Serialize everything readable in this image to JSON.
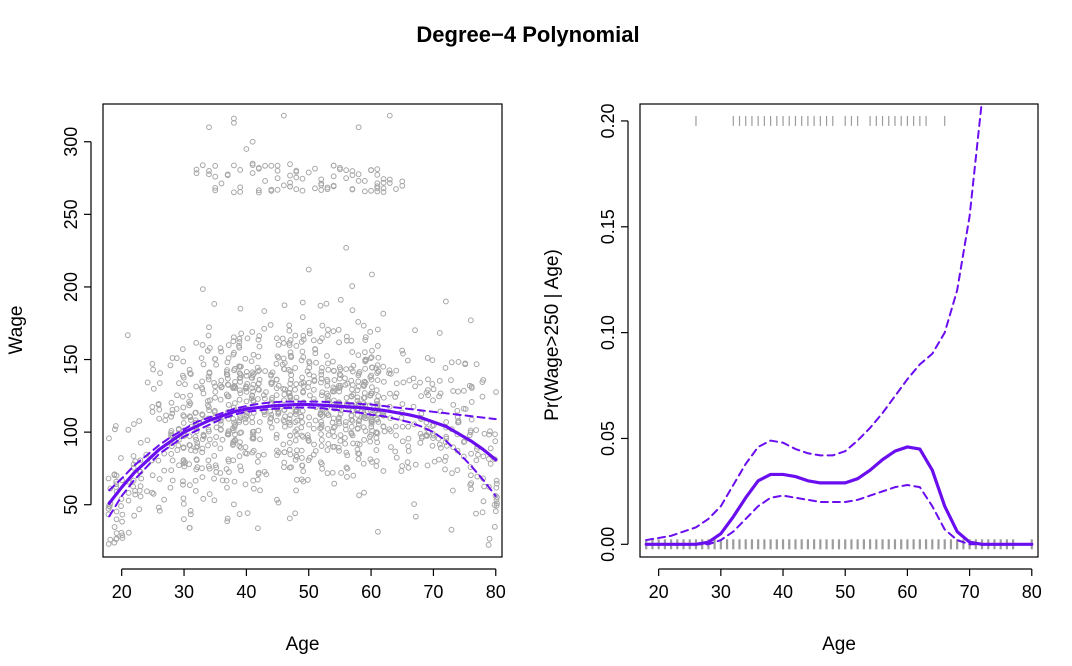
{
  "title": "Degree−4 Polynomial",
  "colors": {
    "fit": "#6a0ef0",
    "points": "#a6a6a6",
    "rug": "#9c9c9c",
    "axis": "#000000"
  },
  "chart_data": [
    {
      "type": "scatter",
      "panel": "left",
      "xlabel": "Age",
      "ylabel": "Wage",
      "xlim": [
        17,
        81
      ],
      "ylim": [
        14,
        326
      ],
      "xticks": [
        20,
        30,
        40,
        50,
        60,
        70,
        80
      ],
      "yticks": [
        50,
        100,
        150,
        200,
        250,
        300
      ],
      "series": [
        {
          "role": "fit",
          "style": "solid",
          "x": [
            18,
            20,
            22,
            24,
            26,
            28,
            30,
            32,
            34,
            36,
            38,
            40,
            42,
            44,
            46,
            48,
            50,
            52,
            54,
            56,
            58,
            60,
            62,
            64,
            66,
            68,
            70,
            72,
            74,
            76,
            78,
            80
          ],
          "y": [
            51,
            62,
            72,
            80,
            88,
            94,
            100,
            104,
            108,
            111,
            114,
            116,
            117,
            118,
            118.5,
            119,
            119,
            118.6,
            118,
            117.5,
            117,
            116,
            115,
            113.5,
            112,
            110,
            107,
            104,
            99,
            94,
            88,
            81
          ]
        },
        {
          "role": "upper-band",
          "style": "dashed",
          "x": [
            18,
            20,
            22,
            24,
            26,
            28,
            30,
            32,
            34,
            36,
            38,
            40,
            42,
            44,
            46,
            48,
            50,
            52,
            54,
            56,
            58,
            60,
            62,
            64,
            66,
            68,
            70,
            72,
            74,
            76,
            78,
            80
          ],
          "y": [
            60,
            68,
            77,
            84,
            91,
            97,
            102,
            107,
            110,
            113,
            116,
            118,
            119.5,
            120.5,
            121,
            121,
            121,
            121,
            120.5,
            120,
            119.5,
            119,
            118,
            117,
            116,
            115,
            114,
            113,
            112,
            111,
            110,
            109
          ]
        },
        {
          "role": "lower-band",
          "style": "dashed",
          "x": [
            18,
            20,
            22,
            24,
            26,
            28,
            30,
            32,
            34,
            36,
            38,
            40,
            42,
            44,
            46,
            48,
            50,
            52,
            54,
            56,
            58,
            60,
            62,
            64,
            66,
            68,
            70,
            72,
            74,
            76,
            78,
            80
          ],
          "y": [
            42,
            56,
            67,
            76,
            85,
            91,
            97,
            101,
            105,
            109,
            112,
            114,
            115,
            116,
            116.5,
            117,
            117,
            116.5,
            115.5,
            114.5,
            113.5,
            112,
            111,
            109,
            107,
            104,
            100,
            94,
            86,
            77,
            67,
            56
          ]
        }
      ]
    },
    {
      "type": "line",
      "panel": "right",
      "xlabel": "Age",
      "ylabel": "Pr(Wage>250 | Age)",
      "xlim": [
        17,
        81
      ],
      "ylim": [
        -0.006,
        0.208
      ],
      "xticks": [
        20,
        30,
        40,
        50,
        60,
        70,
        80
      ],
      "yticks": [
        0.0,
        0.05,
        0.1,
        0.15,
        0.2
      ],
      "ytick_labels": [
        "0.00",
        "0.05",
        "0.10",
        "0.15",
        "0.20"
      ],
      "series": [
        {
          "role": "fit",
          "style": "solid",
          "x": [
            18,
            22,
            26,
            28,
            30,
            32,
            34,
            36,
            38,
            40,
            42,
            44,
            46,
            48,
            50,
            52,
            54,
            56,
            58,
            60,
            62,
            64,
            66,
            68,
            70,
            72,
            74,
            76,
            78,
            80
          ],
          "y": [
            0.0,
            0.0,
            0.0,
            0.001,
            0.005,
            0.013,
            0.022,
            0.03,
            0.033,
            0.033,
            0.032,
            0.03,
            0.029,
            0.029,
            0.029,
            0.031,
            0.035,
            0.04,
            0.044,
            0.046,
            0.045,
            0.035,
            0.018,
            0.006,
            0.001,
            0.0,
            0.0,
            0.0,
            0.0,
            0.0
          ]
        },
        {
          "role": "upper-band",
          "style": "dashed",
          "x": [
            18,
            22,
            26,
            28,
            30,
            32,
            34,
            36,
            38,
            40,
            42,
            44,
            46,
            48,
            50,
            52,
            54,
            56,
            58,
            60,
            62,
            64,
            66,
            68,
            70,
            72
          ],
          "y": [
            0.002,
            0.004,
            0.008,
            0.012,
            0.018,
            0.028,
            0.038,
            0.046,
            0.049,
            0.048,
            0.045,
            0.043,
            0.042,
            0.042,
            0.044,
            0.049,
            0.055,
            0.062,
            0.07,
            0.078,
            0.085,
            0.09,
            0.1,
            0.12,
            0.155,
            0.21
          ]
        },
        {
          "role": "lower-band",
          "style": "dashed",
          "x": [
            18,
            22,
            26,
            28,
            30,
            32,
            34,
            36,
            38,
            40,
            42,
            44,
            46,
            48,
            50,
            52,
            54,
            56,
            58,
            60,
            62,
            64,
            66,
            68,
            70,
            72,
            74,
            76,
            78,
            80
          ],
          "y": [
            0.0,
            0.0,
            0.0,
            0.0,
            0.002,
            0.006,
            0.012,
            0.018,
            0.022,
            0.023,
            0.022,
            0.021,
            0.02,
            0.02,
            0.02,
            0.021,
            0.023,
            0.025,
            0.027,
            0.028,
            0.027,
            0.018,
            0.007,
            0.002,
            0.0,
            0.0,
            0.0,
            0.0,
            0.0,
            0.0
          ]
        }
      ],
      "rug_top_y": 0.2,
      "rug_top_x": [
        26,
        32,
        33,
        34,
        35,
        36,
        37,
        38,
        39,
        40,
        41,
        42,
        43,
        44,
        45,
        46,
        47,
        48,
        50,
        51,
        52,
        54,
        55,
        56,
        57,
        58,
        59,
        60,
        61,
        62,
        63,
        66
      ],
      "rug_bottom_y": 0.0,
      "rug_bottom_x": [
        18,
        19,
        20,
        21,
        22,
        23,
        24,
        25,
        26,
        27,
        28,
        29,
        30,
        31,
        32,
        33,
        34,
        35,
        36,
        37,
        38,
        39,
        40,
        41,
        42,
        43,
        44,
        45,
        46,
        47,
        48,
        49,
        50,
        51,
        52,
        53,
        54,
        55,
        56,
        57,
        58,
        59,
        60,
        61,
        62,
        63,
        64,
        65,
        66,
        67,
        68,
        69,
        70,
        71,
        72,
        73,
        74,
        75,
        76,
        77,
        80
      ]
    }
  ]
}
